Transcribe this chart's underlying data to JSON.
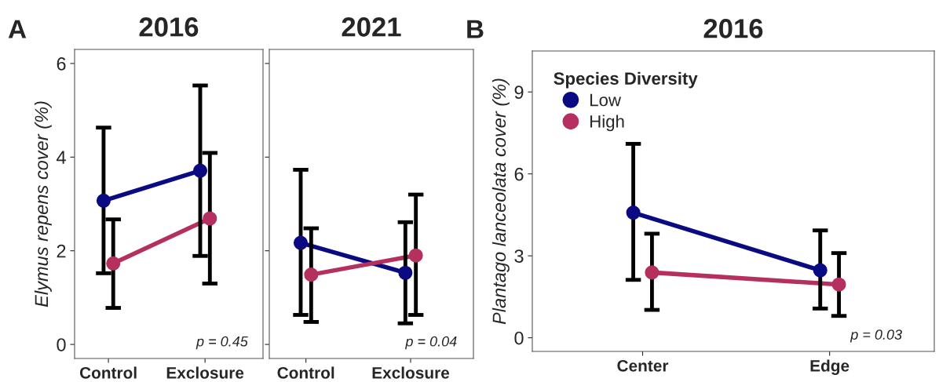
{
  "chart_data": [
    {
      "type": "line",
      "title": "2016",
      "ylabel": "Elymus repens cover (%)",
      "categories": [
        "Control",
        "Exclosure"
      ],
      "ylim": [
        -0.3,
        6.3
      ],
      "yticks": [
        0,
        2,
        4,
        6
      ],
      "marker": "circle",
      "grid": false,
      "legend": false,
      "series": [
        {
          "color": "#0a0a82",
          "values": [
            3.07,
            3.71
          ],
          "errors": [
            [
              1.52,
              4.63
            ],
            [
              1.89,
              5.53
            ]
          ]
        },
        {
          "color": "#b5305e",
          "values": [
            1.73,
            2.69
          ],
          "errors": [
            [
              0.78,
              2.67
            ],
            [
              1.3,
              4.09
            ]
          ]
        }
      ],
      "annotations": [
        "A",
        "p = 0.45"
      ]
    },
    {
      "type": "line",
      "title": "2021",
      "categories": [
        "Control",
        "Exclosure"
      ],
      "ylim": [
        -0.3,
        6.3
      ],
      "yticks": [
        0,
        2,
        4,
        6
      ],
      "tick_labels": "x",
      "marker": "circle",
      "grid": false,
      "legend": false,
      "series": [
        {
          "color": "#0a0a82",
          "values": [
            2.17,
            1.53
          ],
          "errors": [
            [
              0.63,
              3.73
            ],
            [
              0.45,
              2.61
            ]
          ]
        },
        {
          "color": "#b5305e",
          "values": [
            1.49,
            1.9
          ],
          "errors": [
            [
              0.48,
              2.48
            ],
            [
              0.63,
              3.2
            ]
          ]
        }
      ],
      "annotations": [
        "p = 0.04"
      ]
    },
    {
      "type": "line",
      "title": "2016",
      "ylabel": "Plantago lanceolata cover (%)",
      "categories": [
        "Center",
        "Edge"
      ],
      "ylim": [
        -0.5,
        10.5
      ],
      "yticks": [
        0,
        3,
        6,
        9
      ],
      "marker": "circle",
      "grid": false,
      "legend": "top left",
      "legend_title": "Species Diversity",
      "series": [
        {
          "name": "Low",
          "color": "#0a0a82",
          "values": [
            4.58,
            2.47
          ],
          "errors": [
            [
              2.12,
              7.1
            ],
            [
              1.07,
              3.93
            ]
          ]
        },
        {
          "name": "High",
          "color": "#b5305e",
          "values": [
            2.39,
            1.95
          ],
          "errors": [
            [
              1.02,
              3.81
            ],
            [
              0.8,
              3.1
            ]
          ]
        }
      ],
      "annotations": [
        "B",
        "p = 0.03"
      ]
    }
  ]
}
